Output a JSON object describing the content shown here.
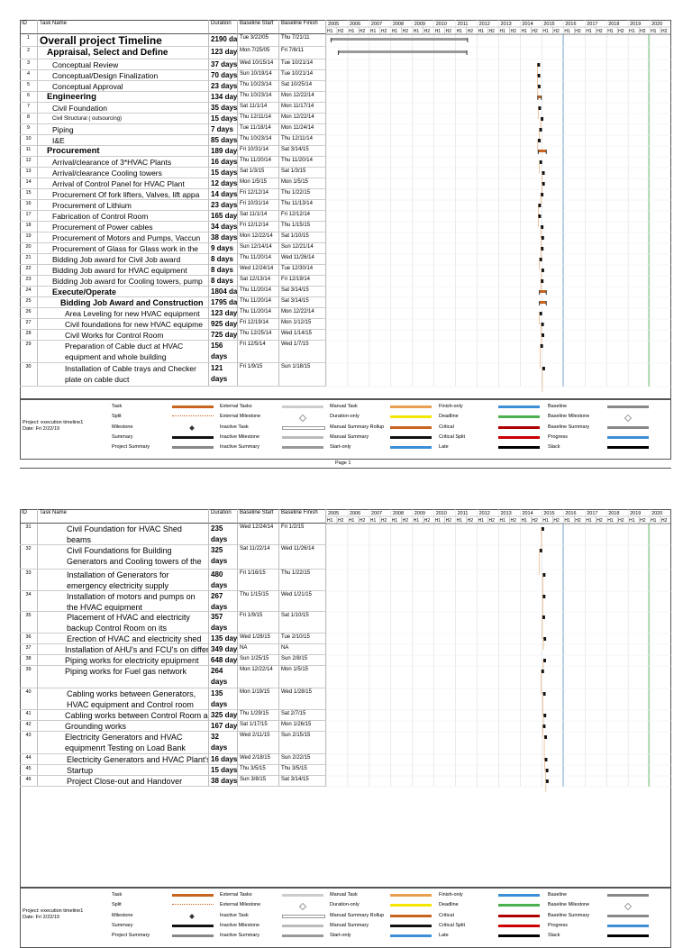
{
  "header": {
    "id": "ID",
    "task_name": "Task Name",
    "duration": "Duration",
    "baseline_start": "Baseline Start",
    "baseline_finish": "Baseline Finish"
  },
  "timeline": {
    "years": [
      "2005",
      "2006",
      "2007",
      "2008",
      "2009",
      "2010",
      "2011",
      "2012",
      "2013",
      "2014",
      "2015",
      "2016",
      "2017",
      "2018",
      "2019",
      "2020"
    ],
    "halves": [
      "H1",
      "H2"
    ]
  },
  "pages": [
    {
      "rows": [
        [
          "1",
          "Overall project Timeline",
          "2190 da",
          "Tue 3/22/05",
          "Thu 7/21/11"
        ],
        [
          "2",
          "Appraisal, Select and Define",
          "123 day",
          "Mon 7/25/05",
          "Fri 7/8/11"
        ],
        [
          "3",
          "Conceptual Review",
          "37 days",
          "Wed 10/15/14",
          "Tue 10/21/14"
        ],
        [
          "4",
          "Conceptual/Design Finalization",
          "70 days",
          "Sun 10/19/14",
          "Tue 10/21/14"
        ],
        [
          "5",
          "Conceptual Approval",
          "23 days",
          "Thu 10/23/14",
          "Sat 10/25/14"
        ],
        [
          "6",
          "Engineering",
          "134 day",
          "Thu 10/23/14",
          "Mon 12/22/14"
        ],
        [
          "7",
          "Civil Foundation",
          "35 days",
          "Sat 11/1/14",
          "Mon 11/17/14"
        ],
        [
          "8",
          "Civil Structural ( outsourcing)",
          "15 days",
          "Thu 12/11/14",
          "Mon 12/22/14"
        ],
        [
          "9",
          "Piping",
          "7 days",
          "Tue 11/18/14",
          "Mon 11/24/14"
        ],
        [
          "10",
          "I&E",
          "85 days",
          "Thu 10/23/14",
          "Thu 12/11/14"
        ],
        [
          "11",
          "Procurement",
          "189 day",
          "Fri 10/31/14",
          "Sat 3/14/15"
        ],
        [
          "12",
          "Arrival/clearance of 3*HVAC Plants",
          "16 days",
          "Thu 11/20/14",
          "Thu 11/20/14"
        ],
        [
          "13",
          "Arrival/clearance Cooling towers",
          "15 days",
          "Sat 1/3/15",
          "Sat 1/3/15"
        ],
        [
          "14",
          "Arrival of Control Panel for HVAC Plant",
          "12 days",
          "Mon 1/5/15",
          "Mon 1/5/15"
        ],
        [
          "15",
          "Procurement Of fork lifters, Valves, lift appa",
          "14 days",
          "Fri 12/12/14",
          "Thu 1/22/15"
        ],
        [
          "16",
          "Procurement of Lithium",
          "23 days",
          "Fri 10/31/14",
          "Thu 11/13/14"
        ],
        [
          "17",
          "Fabrication of Control Room",
          "165 days",
          "Sat 11/1/14",
          "Fri 12/12/14"
        ],
        [
          "18",
          "Procurement of Power cables",
          "34 days",
          "Fri 12/12/14",
          "Thu 1/15/15"
        ],
        [
          "19",
          "Procurement of Motors and Pumps, Vaccun",
          "38 days",
          "Mon 12/22/14",
          "Sat 1/10/15"
        ],
        [
          "20",
          "Procurement of Glass for Glass work in the",
          "9 days",
          "Sun 12/14/14",
          "Sun 12/21/14"
        ],
        [
          "21",
          "Bidding Job award for Civil Job award",
          "8 days",
          "Thu 11/20/14",
          "Wed 11/26/14"
        ],
        [
          "22",
          "Bidding Job award for HVAC equipment",
          "8 days",
          "Wed 12/24/14",
          "Tue 12/30/14"
        ],
        [
          "23",
          "Bidding Job award for Cooling towers, pump",
          "8 days",
          "Sat 12/13/14",
          "Fri 12/19/14"
        ],
        [
          "24",
          "Execute/Operate",
          "1804 day",
          "Thu 11/20/14",
          "Sat 3/14/15"
        ],
        [
          "25",
          "Bidding Job Award and Construction",
          "1795 day",
          "Thu 11/20/14",
          "Sat 3/14/15"
        ],
        [
          "26",
          "Area Leveling for new HVAC equipment",
          "123 days",
          "Thu 11/20/14",
          "Mon 12/22/14"
        ],
        [
          "27",
          "Civil foundations for new HVAC equipme",
          "925 days",
          "Fri 12/19/14",
          "Mon 1/12/15"
        ],
        [
          "28",
          "Civil Works for Control Room",
          "725 days",
          "Thu 12/25/14",
          "Wed 1/14/15"
        ],
        [
          "29",
          "Preparation of Cable duct at HVAC equipment and whole building",
          "156 days",
          "Fri 12/5/14",
          "Wed 1/7/15"
        ],
        [
          "30",
          "Installation of Cable trays and Checker plate on cable duct",
          "121 days",
          "Fri 1/9/15",
          "Sun 1/18/15"
        ]
      ],
      "page_label": "Page 1"
    },
    {
      "rows": [
        [
          "31",
          "Civil Foundation for HVAC Shed beams",
          "235 days",
          "Wed 12/24/14",
          "Fri 1/2/15"
        ],
        [
          "32",
          "Civil Foundations for Building Generators and Cooling towers of the",
          "325 days",
          "Sat 11/22/14",
          "Wed 11/26/14"
        ],
        [
          "33",
          "Installation of Generators for emergency electricity supply",
          "480 days",
          "Fri 1/16/15",
          "Thu 1/22/15"
        ],
        [
          "34",
          "Installation of motors and pumps on the HVAC equipment",
          "267 days",
          "Thu 1/15/15",
          "Wed 1/21/15"
        ],
        [
          "35",
          "Placement of HVAC and electricity backup Control Room on its foundation",
          "357 days",
          "Fri 1/9/15",
          "Sat 1/10/15"
        ],
        [
          "36",
          "Erection of HVAC and electricity shed",
          "135 days",
          "Wed 1/28/15",
          "Tue 2/10/15"
        ],
        [
          "37",
          "Installation of AHU's and FCU's on differ",
          "349 days",
          "NA",
          "NA"
        ],
        [
          "38",
          "Piping works for electricity epuipment",
          "648 days",
          "Sun 1/25/15",
          "Sun 2/8/15"
        ],
        [
          "39",
          "Piping works for Fuel gas network",
          "264 days",
          "Mon 12/22/14",
          "Mon 1/5/15"
        ],
        [
          "40",
          "Cabling works between Generators, HVAC equipment and Control room",
          "135 days",
          "Mon 1/19/15",
          "Wed 1/28/15"
        ],
        [
          "41",
          "Cabling works between Control Room a",
          "325 days",
          "Thu 1/29/15",
          "Sat 2/7/15"
        ],
        [
          "42",
          "Grounding works",
          "167 days",
          "Sat 1/17/15",
          "Mon 1/26/15"
        ],
        [
          "43",
          "Electricity Generators and HVAC equipmenrt Testing on Load Bank",
          "32 days",
          "Wed 2/11/15",
          "Sun 2/15/15"
        ],
        [
          "44",
          "Electricity Generators and HVAC Plant's",
          "16 days",
          "Wed 2/18/15",
          "Sun 2/22/15"
        ],
        [
          "45",
          "Startup",
          "15 days",
          "Thu 3/5/15",
          "Thu 3/5/15"
        ],
        [
          "46",
          "Project Close-out and Handover",
          "38 days",
          "Sun 3/8/15",
          "Sat 3/14/15"
        ]
      ]
    }
  ],
  "legend": {
    "project": "Project: execution timeline1",
    "date": "Date: Fri 2/22/19",
    "columns": [
      [
        "Task",
        "Split",
        "Milestone",
        "Summary",
        "Project Summary"
      ],
      [
        "External Tasks",
        "External Milestone",
        "Inactive Task",
        "Inactive Milestone",
        "Inactive Summary"
      ],
      [
        "Manual Task",
        "Duration-only",
        "Manual Summary Rollup",
        "Manual Summary",
        "Start-only"
      ],
      [
        "Finish-only",
        "Deadline",
        "Critical",
        "Critical Split",
        "Late"
      ],
      [
        "Baseline",
        "Baseline Milestone",
        "Baseline Summary",
        "Progress",
        "Slack"
      ]
    ]
  }
}
